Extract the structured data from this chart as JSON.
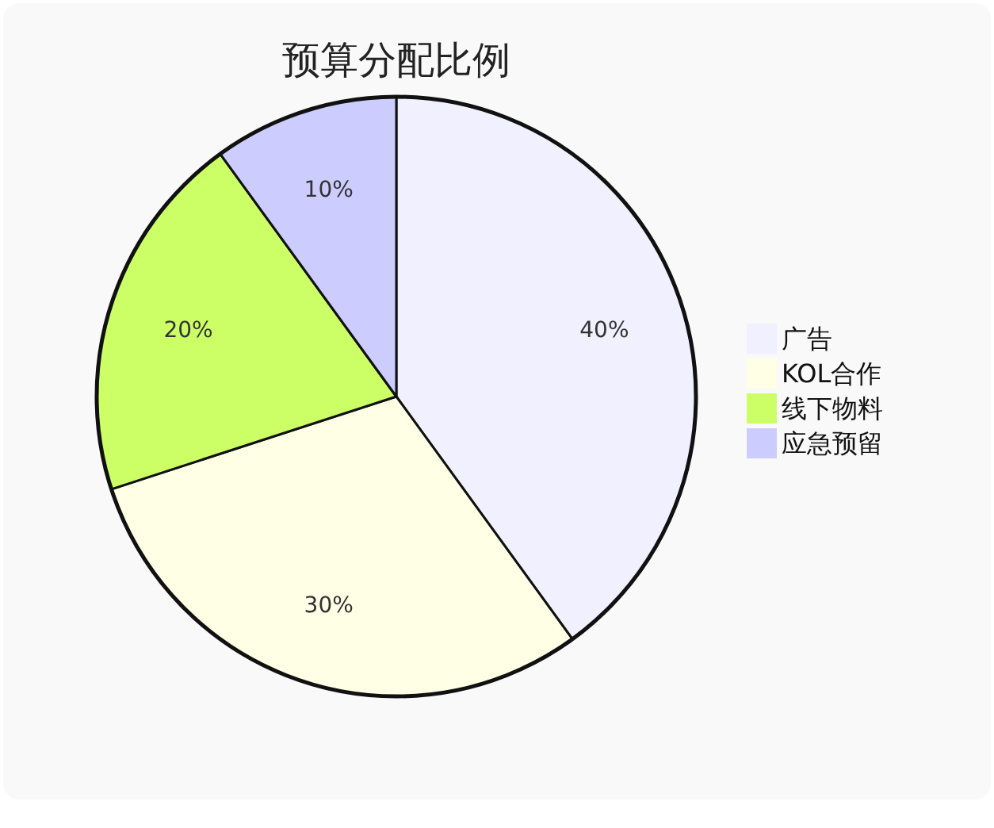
{
  "chart_data": {
    "type": "pie",
    "title": "预算分配比例",
    "categories": [
      "广告",
      "KOL合作",
      "线下物料",
      "应急预留"
    ],
    "values": [
      40,
      30,
      20,
      10
    ],
    "colors": [
      "#f0f0ff",
      "#ffffe6",
      "#ccff66",
      "#ccccff"
    ],
    "value_labels": [
      "40%",
      "30%",
      "20%",
      "10%"
    ],
    "legend": "right"
  }
}
